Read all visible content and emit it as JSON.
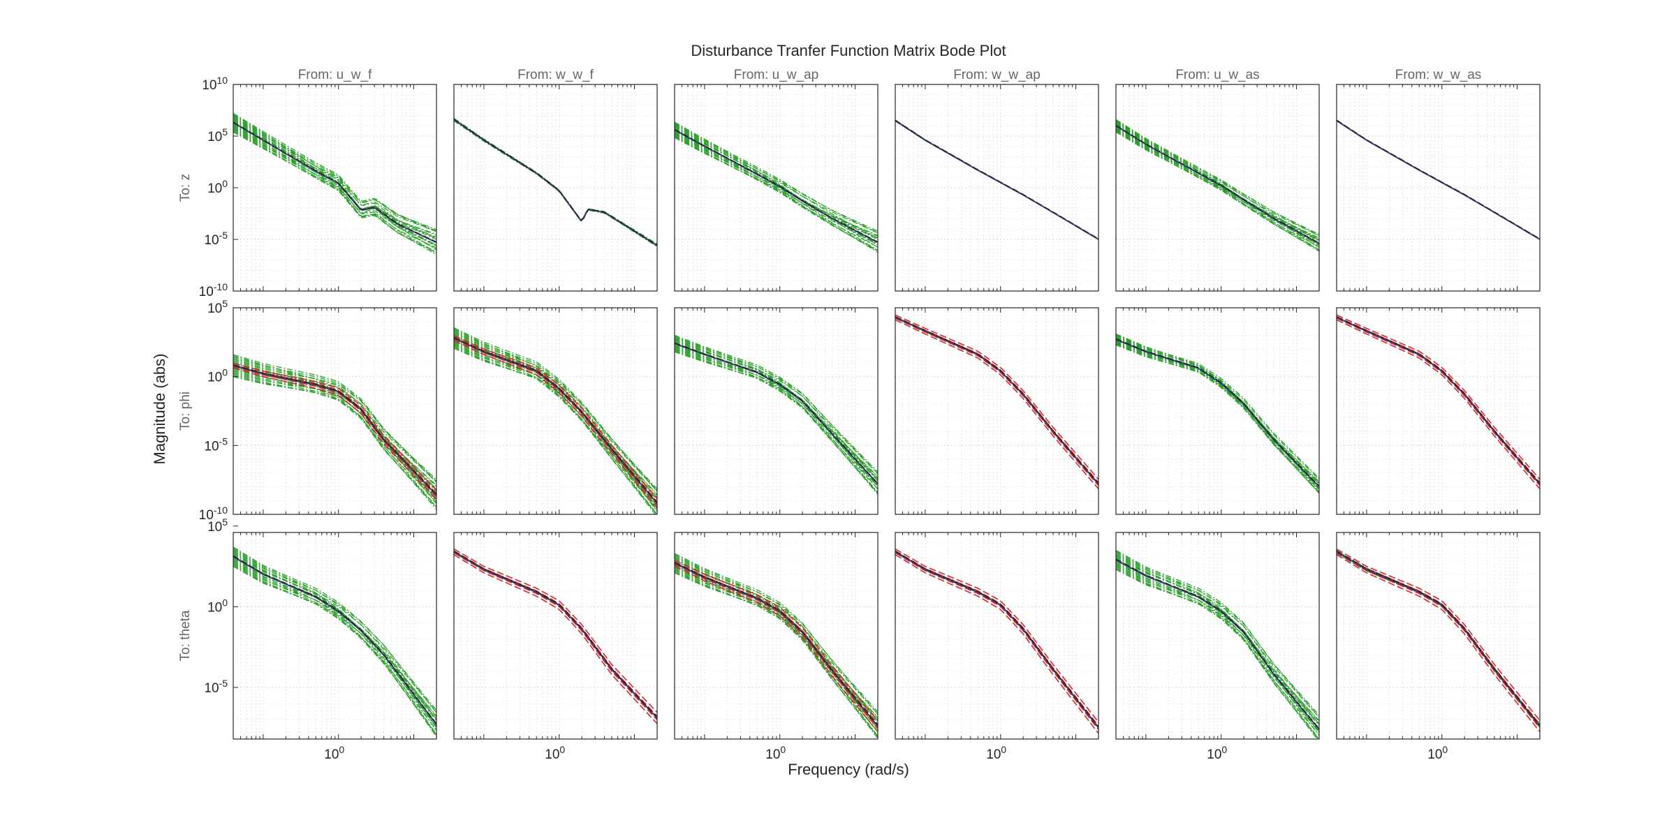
{
  "figure": {
    "title": "Disturbance Tranfer Function Matrix Bode Plot",
    "xlabel": "Frequency  (rad/s)",
    "ylabel": "Magnitude (abs)",
    "input_labels": [
      "From: u_w_f",
      "From: w_w_f",
      "From: u_w_ap",
      "From: w_w_ap",
      "From: u_w_as",
      "From: w_w_as"
    ],
    "output_labels": [
      "To: z",
      "To: phi",
      "To: theta"
    ],
    "x_tick_label": "10^0",
    "row_ticks": [
      [
        "10^10",
        "10^5",
        "10^0",
        "10^-5",
        "10^-10"
      ],
      [
        "10^5",
        "10^0",
        "10^-5",
        "10^-10"
      ],
      [
        "10^5",
        "10^0",
        "10^-5"
      ]
    ]
  },
  "chart_data": {
    "type": "line",
    "title": "Disturbance Tranfer Function Matrix Bode Plot",
    "xlabel": "Frequency  (rad/s)",
    "ylabel": "Magnitude (abs)",
    "xscale": "log",
    "yscale": "log",
    "xlim": [
      0.04,
      20
    ],
    "row_ylim": [
      [
        -10,
        10
      ],
      [
        -10,
        5
      ],
      [
        -8.2,
        4.6
      ]
    ],
    "grid": true,
    "colors": {
      "nominal": "#3a3a78",
      "green": "#2ca02c",
      "red": "#d62728",
      "black": "#222222",
      "axis": "#262626",
      "label": "#666666"
    },
    "subplots": [
      {
        "row": 0,
        "col": 0,
        "input": "u_w_f",
        "output": "z",
        "nominal": [
          [
            0.04,
            6.3
          ],
          [
            0.1,
            4.6
          ],
          [
            0.5,
            1.6
          ],
          [
            1,
            0.4
          ],
          [
            2,
            -2.2
          ],
          [
            3,
            -1.9
          ],
          [
            6,
            -3.5
          ],
          [
            20,
            -5.3
          ]
        ],
        "green_spread": 1.8,
        "green_count": 20,
        "red": false,
        "black": true
      },
      {
        "row": 0,
        "col": 1,
        "input": "w_w_f",
        "output": "z",
        "nominal": [
          [
            0.04,
            6.6
          ],
          [
            0.1,
            4.6
          ],
          [
            0.5,
            1.4
          ],
          [
            1,
            -0.3
          ],
          [
            2,
            -3.3
          ],
          [
            2.4,
            -2.1
          ],
          [
            4,
            -2.4
          ],
          [
            20,
            -5.6
          ]
        ],
        "green_spread": 0.25,
        "green_count": 6,
        "red": false,
        "black": true
      },
      {
        "row": 0,
        "col": 2,
        "input": "u_w_ap",
        "output": "z",
        "nominal": [
          [
            0.04,
            5.6
          ],
          [
            0.1,
            4
          ],
          [
            0.5,
            1.3
          ],
          [
            1,
            0.1
          ],
          [
            2,
            -1.3
          ],
          [
            5,
            -3
          ],
          [
            20,
            -5.3
          ]
        ],
        "green_spread": 1.5,
        "green_count": 18,
        "red": false,
        "black": true
      },
      {
        "row": 0,
        "col": 3,
        "input": "w_w_ap",
        "output": "z",
        "nominal": [
          [
            0.04,
            6.5
          ],
          [
            0.1,
            4.6
          ],
          [
            0.5,
            1.7
          ],
          [
            1,
            0.5
          ],
          [
            2,
            -0.7
          ],
          [
            5,
            -2.4
          ],
          [
            20,
            -5
          ]
        ],
        "green_spread": 0.1,
        "green_count": 3,
        "red": false,
        "black": true
      },
      {
        "row": 0,
        "col": 4,
        "input": "u_w_as",
        "output": "z",
        "nominal": [
          [
            0.04,
            6
          ],
          [
            0.1,
            4.2
          ],
          [
            0.5,
            1.4
          ],
          [
            1,
            0.2
          ],
          [
            2,
            -1.2
          ],
          [
            5,
            -3
          ],
          [
            20,
            -5.4
          ]
        ],
        "green_spread": 1.2,
        "green_count": 18,
        "red": false,
        "black": true
      },
      {
        "row": 0,
        "col": 5,
        "input": "w_w_as",
        "output": "z",
        "nominal": [
          [
            0.04,
            6.5
          ],
          [
            0.1,
            4.6
          ],
          [
            0.5,
            1.7
          ],
          [
            1,
            0.5
          ],
          [
            2,
            -0.7
          ],
          [
            5,
            -2.4
          ],
          [
            20,
            -5
          ]
        ],
        "green_spread": 0.05,
        "green_count": 2,
        "red": false,
        "black": true
      },
      {
        "row": 1,
        "col": 0,
        "input": "u_w_f",
        "output": "phi",
        "nominal": [
          [
            0.04,
            0.8
          ],
          [
            0.1,
            0.2
          ],
          [
            0.5,
            -0.6
          ],
          [
            1,
            -1.1
          ],
          [
            2,
            -2.4
          ],
          [
            4,
            -4.6
          ],
          [
            20,
            -8.6
          ]
        ],
        "green_spread": 1.6,
        "green_count": 20,
        "red": true,
        "black": true
      },
      {
        "row": 1,
        "col": 1,
        "input": "w_w_f",
        "output": "phi",
        "nominal": [
          [
            0.04,
            2.8
          ],
          [
            0.1,
            1.8
          ],
          [
            0.5,
            0.4
          ],
          [
            1,
            -0.9
          ],
          [
            2,
            -2.6
          ],
          [
            5,
            -5.3
          ],
          [
            20,
            -9.2
          ]
        ],
        "green_spread": 1.5,
        "green_count": 20,
        "red": true,
        "black": true
      },
      {
        "row": 1,
        "col": 2,
        "input": "u_w_ap",
        "output": "phi",
        "nominal": [
          [
            0.04,
            2.4
          ],
          [
            0.1,
            1.6
          ],
          [
            0.5,
            0.3
          ],
          [
            1,
            -0.6
          ],
          [
            2,
            -1.8
          ],
          [
            5,
            -4.2
          ],
          [
            20,
            -7.8
          ]
        ],
        "green_spread": 1.2,
        "green_count": 18,
        "red": false,
        "black": true
      },
      {
        "row": 1,
        "col": 3,
        "input": "w_w_ap",
        "output": "phi",
        "nominal": [
          [
            0.04,
            4.3
          ],
          [
            0.1,
            3.3
          ],
          [
            0.5,
            1.6
          ],
          [
            1,
            0.4
          ],
          [
            2,
            -1.3
          ],
          [
            5,
            -4
          ],
          [
            20,
            -7.8
          ]
        ],
        "green_spread": 0.1,
        "green_count": 3,
        "red": true,
        "black": true
      },
      {
        "row": 1,
        "col": 4,
        "input": "u_w_as",
        "output": "phi",
        "nominal": [
          [
            0.04,
            2.7
          ],
          [
            0.1,
            1.8
          ],
          [
            0.5,
            0.6
          ],
          [
            1,
            -0.5
          ],
          [
            2,
            -2
          ],
          [
            5,
            -4.6
          ],
          [
            20,
            -8
          ]
        ],
        "green_spread": 0.8,
        "green_count": 16,
        "red": false,
        "black": true
      },
      {
        "row": 1,
        "col": 5,
        "input": "w_w_as",
        "output": "phi",
        "nominal": [
          [
            0.04,
            4.3
          ],
          [
            0.1,
            3.3
          ],
          [
            0.5,
            1.6
          ],
          [
            1,
            0.4
          ],
          [
            2,
            -1.3
          ],
          [
            5,
            -4
          ],
          [
            20,
            -7.8
          ]
        ],
        "green_spread": 0.05,
        "green_count": 2,
        "red": true,
        "black": true
      },
      {
        "row": 2,
        "col": 0,
        "input": "u_w_f",
        "output": "theta",
        "nominal": [
          [
            0.04,
            3.1
          ],
          [
            0.1,
            2
          ],
          [
            0.5,
            0.6
          ],
          [
            1,
            -0.3
          ],
          [
            2,
            -1.5
          ],
          [
            4,
            -3
          ],
          [
            20,
            -7.3
          ]
        ],
        "green_spread": 1.2,
        "green_count": 18,
        "red": false,
        "black": true
      },
      {
        "row": 2,
        "col": 1,
        "input": "w_w_f",
        "output": "theta",
        "nominal": [
          [
            0.04,
            3.4
          ],
          [
            0.1,
            2.3
          ],
          [
            0.5,
            0.9
          ],
          [
            1,
            0.1
          ],
          [
            2,
            -1.4
          ],
          [
            5,
            -3.9
          ],
          [
            20,
            -6.9
          ]
        ],
        "green_spread": 0.1,
        "green_count": 3,
        "red": true,
        "black": true
      },
      {
        "row": 2,
        "col": 2,
        "input": "u_w_ap",
        "output": "theta",
        "nominal": [
          [
            0.04,
            2.7
          ],
          [
            0.1,
            1.8
          ],
          [
            0.5,
            0.5
          ],
          [
            1,
            -0.3
          ],
          [
            2,
            -1.6
          ],
          [
            5,
            -4
          ],
          [
            20,
            -7.4
          ]
        ],
        "green_spread": 1.2,
        "green_count": 18,
        "red": true,
        "black": true
      },
      {
        "row": 2,
        "col": 3,
        "input": "w_w_ap",
        "output": "theta",
        "nominal": [
          [
            0.04,
            3.4
          ],
          [
            0.1,
            2.3
          ],
          [
            0.5,
            0.9
          ],
          [
            1,
            0.1
          ],
          [
            2,
            -1.4
          ],
          [
            5,
            -3.9
          ],
          [
            20,
            -7.5
          ]
        ],
        "green_spread": 0.1,
        "green_count": 3,
        "red": true,
        "black": true
      },
      {
        "row": 2,
        "col": 4,
        "input": "u_w_as",
        "output": "theta",
        "nominal": [
          [
            0.04,
            2.9
          ],
          [
            0.1,
            1.9
          ],
          [
            0.5,
            0.6
          ],
          [
            1,
            -0.3
          ],
          [
            2,
            -1.6
          ],
          [
            5,
            -4.2
          ],
          [
            20,
            -7.6
          ]
        ],
        "green_spread": 1.2,
        "green_count": 18,
        "red": false,
        "black": true
      },
      {
        "row": 2,
        "col": 5,
        "input": "w_w_as",
        "output": "theta",
        "nominal": [
          [
            0.04,
            3.4
          ],
          [
            0.1,
            2.3
          ],
          [
            0.5,
            0.9
          ],
          [
            1,
            0.1
          ],
          [
            2,
            -1.4
          ],
          [
            5,
            -3.9
          ],
          [
            20,
            -7.4
          ]
        ],
        "green_spread": 0.2,
        "green_count": 6,
        "red": true,
        "black": true
      }
    ]
  }
}
